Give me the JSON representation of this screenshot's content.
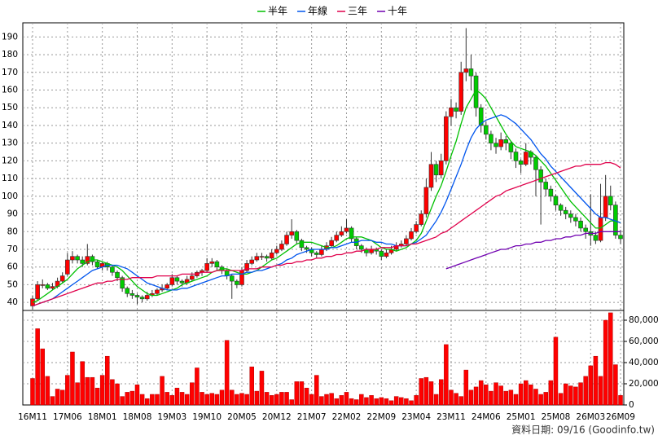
{
  "chart_data": {
    "type": "candlestick",
    "source_note": "資料日期: 09/16 (Goodinfo.tw)",
    "grid": true,
    "legend": "top",
    "up_color": "#ff0000",
    "down_color": "#00cc00",
    "categories": [
      "16M11",
      null,
      null,
      null,
      null,
      null,
      null,
      "17M06",
      null,
      null,
      null,
      null,
      null,
      null,
      "18M01",
      null,
      null,
      null,
      null,
      null,
      null,
      "18M08",
      null,
      null,
      null,
      null,
      null,
      null,
      "19M03",
      null,
      null,
      null,
      null,
      null,
      null,
      "19M10",
      null,
      null,
      null,
      null,
      null,
      null,
      "20M05",
      null,
      null,
      null,
      null,
      null,
      null,
      "20M12",
      null,
      null,
      null,
      null,
      null,
      null,
      "21M07",
      null,
      null,
      null,
      null,
      null,
      null,
      "22M02",
      null,
      null,
      null,
      null,
      null,
      null,
      "22M09",
      null,
      null,
      null,
      null,
      null,
      null,
      "23M04",
      null,
      null,
      null,
      null,
      null,
      null,
      "23M11",
      null,
      null,
      null,
      null,
      null,
      null,
      "24M06",
      null,
      null,
      null,
      null,
      null,
      null,
      "25M01",
      null,
      null,
      null,
      null,
      null,
      null,
      "25M08",
      null,
      null,
      null,
      null,
      null,
      null,
      "26M03",
      null,
      null,
      null,
      null,
      null,
      "26M09"
    ],
    "candles": [
      [
        38,
        44,
        36,
        42
      ],
      [
        42,
        52,
        41,
        50
      ],
      [
        50,
        53,
        48,
        50
      ],
      [
        50,
        51,
        47,
        48
      ],
      [
        48,
        51,
        47,
        49
      ],
      [
        49,
        54,
        48,
        52
      ],
      [
        52,
        57,
        51,
        55
      ],
      [
        56,
        68,
        55,
        64
      ],
      [
        64,
        69,
        62,
        66
      ],
      [
        66,
        67,
        62,
        64
      ],
      [
        64,
        66,
        60,
        62
      ],
      [
        62,
        73,
        61,
        66
      ],
      [
        66,
        67,
        61,
        63
      ],
      [
        63,
        64,
        59,
        60
      ],
      [
        60,
        63,
        58,
        62
      ],
      [
        62,
        63,
        58,
        60
      ],
      [
        60,
        61,
        55,
        57
      ],
      [
        57,
        58,
        52,
        54
      ],
      [
        54,
        55,
        46,
        48
      ],
      [
        48,
        49,
        43,
        45
      ],
      [
        45,
        47,
        42,
        44
      ],
      [
        44,
        45,
        39,
        43
      ],
      [
        43,
        44,
        40,
        42
      ],
      [
        42,
        46,
        41,
        44
      ],
      [
        44,
        47,
        43,
        45
      ],
      [
        45,
        48,
        44,
        47
      ],
      [
        47,
        50,
        46,
        48
      ],
      [
        48,
        51,
        47,
        50
      ],
      [
        50,
        56,
        49,
        54
      ],
      [
        54,
        55,
        50,
        52
      ],
      [
        52,
        53,
        49,
        51
      ],
      [
        51,
        55,
        50,
        53
      ],
      [
        53,
        57,
        52,
        55
      ],
      [
        55,
        58,
        54,
        57
      ],
      [
        57,
        59,
        55,
        58
      ],
      [
        58,
        65,
        57,
        62
      ],
      [
        62,
        65,
        60,
        63
      ],
      [
        63,
        64,
        58,
        60
      ],
      [
        60,
        61,
        56,
        58
      ],
      [
        58,
        59,
        53,
        55
      ],
      [
        55,
        56,
        42,
        52
      ],
      [
        52,
        53,
        48,
        50
      ],
      [
        50,
        60,
        49,
        58
      ],
      [
        58,
        64,
        57,
        62
      ],
      [
        62,
        66,
        61,
        64
      ],
      [
        64,
        68,
        63,
        66
      ],
      [
        66,
        68,
        64,
        66
      ],
      [
        66,
        67,
        63,
        65
      ],
      [
        65,
        70,
        64,
        68
      ],
      [
        68,
        72,
        67,
        70
      ],
      [
        70,
        75,
        69,
        73
      ],
      [
        73,
        80,
        72,
        78
      ],
      [
        78,
        87,
        76,
        80
      ],
      [
        80,
        81,
        73,
        75
      ],
      [
        75,
        76,
        69,
        71
      ],
      [
        71,
        72,
        68,
        70
      ],
      [
        70,
        71,
        66,
        68
      ],
      [
        68,
        69,
        65,
        67
      ],
      [
        67,
        72,
        66,
        70
      ],
      [
        70,
        74,
        69,
        72
      ],
      [
        72,
        77,
        71,
        75
      ],
      [
        75,
        80,
        74,
        78
      ],
      [
        78,
        83,
        77,
        80
      ],
      [
        80,
        87,
        79,
        82
      ],
      [
        82,
        83,
        74,
        76
      ],
      [
        76,
        77,
        70,
        72
      ],
      [
        72,
        73,
        68,
        70
      ],
      [
        70,
        71,
        66,
        68
      ],
      [
        68,
        72,
        67,
        70
      ],
      [
        70,
        71,
        67,
        69
      ],
      [
        69,
        70,
        64,
        66
      ],
      [
        66,
        70,
        65,
        68
      ],
      [
        68,
        72,
        67,
        70
      ],
      [
        70,
        74,
        69,
        72
      ],
      [
        72,
        75,
        71,
        73
      ],
      [
        73,
        78,
        72,
        76
      ],
      [
        76,
        82,
        75,
        80
      ],
      [
        80,
        86,
        79,
        84
      ],
      [
        84,
        92,
        83,
        90
      ],
      [
        90,
        110,
        88,
        105
      ],
      [
        105,
        125,
        103,
        118
      ],
      [
        118,
        120,
        108,
        112
      ],
      [
        112,
        124,
        110,
        120
      ],
      [
        120,
        148,
        118,
        145
      ],
      [
        145,
        155,
        140,
        150
      ],
      [
        150,
        153,
        144,
        148
      ],
      [
        148,
        176,
        146,
        170
      ],
      [
        170,
        195,
        165,
        172
      ],
      [
        172,
        180,
        160,
        168
      ],
      [
        168,
        170,
        145,
        150
      ],
      [
        150,
        152,
        136,
        140
      ],
      [
        140,
        142,
        132,
        135
      ],
      [
        135,
        137,
        126,
        130
      ],
      [
        130,
        133,
        124,
        128
      ],
      [
        128,
        136,
        126,
        132
      ],
      [
        132,
        134,
        126,
        130
      ],
      [
        130,
        131,
        121,
        125
      ],
      [
        125,
        127,
        116,
        120
      ],
      [
        120,
        121,
        113,
        118
      ],
      [
        118,
        130,
        117,
        125
      ],
      [
        125,
        126,
        118,
        122
      ],
      [
        122,
        123,
        100,
        115
      ],
      [
        115,
        117,
        84,
        108
      ],
      [
        108,
        110,
        100,
        104
      ],
      [
        104,
        106,
        97,
        100
      ],
      [
        100,
        101,
        92,
        95
      ],
      [
        95,
        96,
        89,
        92
      ],
      [
        92,
        94,
        87,
        90
      ],
      [
        90,
        92,
        85,
        88
      ],
      [
        88,
        90,
        83,
        86
      ],
      [
        86,
        88,
        80,
        82
      ],
      [
        82,
        84,
        76,
        80
      ],
      [
        80,
        101,
        72,
        78
      ],
      [
        78,
        80,
        73,
        75
      ],
      [
        75,
        107,
        74,
        88
      ],
      [
        88,
        112,
        86,
        100
      ],
      [
        100,
        106,
        92,
        95
      ],
      [
        95,
        97,
        76,
        78
      ],
      [
        78,
        81,
        73,
        76
      ]
    ],
    "ylim": [
      35,
      198
    ],
    "yticks": [
      40,
      50,
      60,
      70,
      80,
      90,
      100,
      110,
      120,
      130,
      140,
      150,
      160,
      170,
      180,
      190
    ],
    "series": [
      {
        "name": "半年",
        "color": "#00c000",
        "values": [
          40,
          41,
          43,
          45,
          47,
          49,
          51,
          53,
          56,
          59,
          61,
          63,
          64,
          64,
          63,
          62,
          61,
          60,
          58,
          55,
          52,
          49,
          47,
          45,
          44,
          44,
          45,
          46,
          47,
          48,
          50,
          51,
          52,
          53,
          54,
          55,
          57,
          58,
          59,
          59,
          58,
          57,
          56,
          56,
          57,
          58,
          60,
          62,
          64,
          65,
          67,
          69,
          71,
          73,
          74,
          74,
          74,
          73,
          72,
          71,
          71,
          72,
          74,
          76,
          77,
          77,
          77,
          76,
          75,
          73,
          71,
          70,
          70,
          69,
          70,
          71,
          73,
          75,
          79,
          86,
          93,
          100,
          106,
          114,
          123,
          131,
          141,
          150,
          155,
          160,
          158,
          155,
          150,
          145,
          140,
          135,
          131,
          128,
          127,
          126,
          125,
          123,
          120,
          117,
          113,
          109,
          105,
          101,
          97,
          94,
          91,
          88,
          85,
          82,
          82,
          84,
          86,
          86,
          85
        ]
      },
      {
        "name": "年線",
        "color": "#0055ee",
        "values": [
          38,
          39,
          40,
          41,
          42,
          44,
          46,
          48,
          50,
          52,
          54,
          56,
          58,
          59,
          60,
          61,
          61,
          61,
          60,
          59,
          57,
          55,
          53,
          51,
          50,
          49,
          48,
          47,
          47,
          47,
          48,
          48,
          49,
          50,
          51,
          52,
          53,
          54,
          55,
          55,
          56,
          56,
          56,
          57,
          57,
          58,
          58,
          59,
          60,
          61,
          62,
          64,
          65,
          67,
          68,
          69,
          70,
          70,
          70,
          70,
          71,
          71,
          72,
          73,
          74,
          74,
          75,
          75,
          75,
          74,
          74,
          73,
          73,
          72,
          72,
          72,
          73,
          74,
          76,
          78,
          82,
          86,
          91,
          97,
          104,
          111,
          118,
          126,
          133,
          138,
          141,
          143,
          144,
          145,
          146,
          145,
          143,
          141,
          138,
          135,
          132,
          128,
          124,
          121,
          117,
          114,
          111,
          108,
          105,
          102,
          99,
          96,
          93,
          90,
          88,
          88,
          87,
          86,
          85
        ]
      },
      {
        "name": "三年",
        "color": "#e0004b",
        "values": [
          38,
          39,
          40,
          41,
          42,
          43,
          44,
          45,
          46,
          47,
          48,
          49,
          50,
          51,
          51,
          52,
          52,
          53,
          53,
          53,
          54,
          54,
          54,
          54,
          54,
          55,
          55,
          55,
          55,
          55,
          56,
          56,
          56,
          56,
          57,
          57,
          57,
          58,
          58,
          58,
          58,
          58,
          58,
          59,
          59,
          59,
          60,
          60,
          60,
          61,
          61,
          62,
          62,
          63,
          63,
          64,
          64,
          65,
          65,
          66,
          66,
          67,
          67,
          68,
          68,
          69,
          69,
          70,
          70,
          70,
          71,
          71,
          71,
          72,
          72,
          72,
          73,
          73,
          74,
          75,
          76,
          77,
          79,
          80,
          82,
          84,
          86,
          88,
          90,
          92,
          94,
          96,
          98,
          100,
          101,
          103,
          104,
          105,
          106,
          107,
          108,
          109,
          110,
          111,
          112,
          113,
          114,
          115,
          116,
          117,
          117,
          118,
          118,
          118,
          118,
          119,
          119,
          118,
          116
        ]
      },
      {
        "name": "十年",
        "color": "#7000b0",
        "values": [
          null,
          null,
          null,
          null,
          null,
          null,
          null,
          null,
          null,
          null,
          null,
          null,
          null,
          null,
          null,
          null,
          null,
          null,
          null,
          null,
          null,
          null,
          null,
          null,
          null,
          null,
          null,
          null,
          null,
          null,
          null,
          null,
          null,
          null,
          null,
          null,
          null,
          null,
          null,
          null,
          null,
          null,
          null,
          null,
          null,
          null,
          null,
          null,
          null,
          null,
          null,
          null,
          null,
          null,
          null,
          null,
          null,
          null,
          null,
          null,
          null,
          null,
          null,
          null,
          null,
          null,
          null,
          null,
          null,
          null,
          null,
          null,
          null,
          null,
          null,
          null,
          null,
          null,
          null,
          null,
          null,
          null,
          null,
          59,
          60,
          61,
          62,
          63,
          64,
          65,
          66,
          67,
          68,
          69,
          70,
          70,
          71,
          72,
          72,
          73,
          73,
          74,
          74,
          75,
          75,
          76,
          76,
          77,
          77,
          78,
          78,
          79,
          79,
          79,
          80,
          80,
          80,
          80,
          80
        ]
      }
    ],
    "volume": {
      "color": "#ff0000",
      "ylim": [
        0,
        90000
      ],
      "yticks": [
        0,
        {
          "value": 20000,
          "label": "20,000"
        },
        {
          "value": 40000,
          "label": "40,000"
        },
        {
          "value": 60000,
          "label": "60,000"
        },
        {
          "value": 80000,
          "label": "80,000"
        }
      ],
      "values": [
        25000,
        72000,
        53000,
        27000,
        8000,
        15000,
        14000,
        28000,
        50000,
        21000,
        41000,
        26000,
        26000,
        16000,
        28000,
        46000,
        24000,
        20000,
        8000,
        12000,
        13000,
        19000,
        10000,
        6000,
        10000,
        10000,
        27000,
        12000,
        9000,
        16000,
        12000,
        10000,
        21000,
        35000,
        12000,
        10000,
        11000,
        10000,
        14000,
        61000,
        14000,
        10000,
        11000,
        10000,
        36000,
        13000,
        32000,
        12000,
        9000,
        10000,
        12000,
        12000,
        5000,
        22000,
        22000,
        16000,
        10000,
        28000,
        8000,
        10000,
        11000,
        6000,
        9000,
        12000,
        6000,
        5000,
        10000,
        7000,
        9000,
        6000,
        7000,
        6000,
        4000,
        8000,
        7000,
        6000,
        4000,
        9000,
        25000,
        26000,
        22000,
        10000,
        24000,
        57000,
        14000,
        11000,
        8000,
        33000,
        14000,
        17000,
        23000,
        19000,
        13000,
        21000,
        18000,
        13000,
        14000,
        10000,
        20000,
        23000,
        19000,
        15000,
        10000,
        12000,
        23000,
        64000,
        11000,
        20000,
        18000,
        17000,
        21000,
        27000,
        37000,
        46000,
        27000,
        80000,
        87000,
        38000,
        9000
      ]
    }
  }
}
